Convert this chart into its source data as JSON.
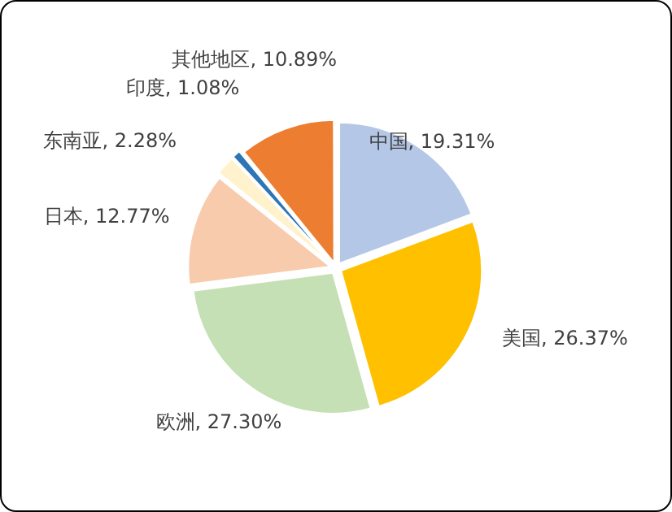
{
  "chart_data": {
    "type": "pie",
    "categories": [
      "中国",
      "美国",
      "欧洲",
      "日本",
      "东南亚",
      "印度",
      "其他地区"
    ],
    "values": [
      19.31,
      26.37,
      27.3,
      12.77,
      2.28,
      1.08,
      10.89
    ],
    "value_labels": [
      "19.31%",
      "26.37%",
      "27.30%",
      "12.77%",
      "2.28%",
      "1.08%",
      "10.89%"
    ],
    "colors": [
      "#b4c7e7",
      "#ffc000",
      "#c5e0b4",
      "#f8cbad",
      "#fff2cc",
      "#2e75b6",
      "#ed7d31"
    ],
    "legend": false
  }
}
